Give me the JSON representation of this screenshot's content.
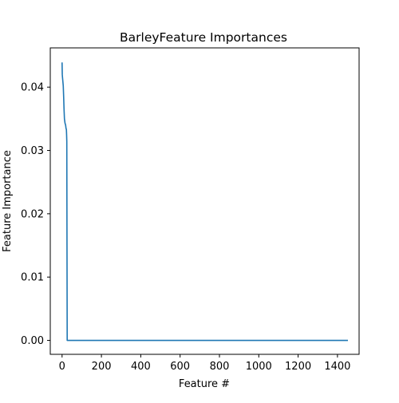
{
  "chart_data": {
    "type": "line",
    "title": "BarleyFeature Importances",
    "xlabel": "Feature #",
    "ylabel": "Feature Importance",
    "xlim": [
      -60,
      1510
    ],
    "ylim": [
      -0.0022,
      0.0462
    ],
    "xticks": [
      0,
      200,
      400,
      600,
      800,
      1000,
      1200,
      1400
    ],
    "xtick_labels": [
      "0",
      "200",
      "400",
      "600",
      "800",
      "1000",
      "1200",
      "1400"
    ],
    "yticks": [
      0.0,
      0.01,
      0.02,
      0.03,
      0.04
    ],
    "ytick_labels": [
      "0.00",
      "0.01",
      "0.02",
      "0.03",
      "0.04"
    ],
    "grid": false,
    "series": [
      {
        "color": "#1f77b4",
        "x": [
          0,
          1,
          2,
          4,
          6,
          8,
          10,
          12,
          15,
          18,
          20,
          22,
          23,
          24,
          25,
          26,
          1450
        ],
        "y": [
          0.0438,
          0.042,
          0.0416,
          0.0409,
          0.0402,
          0.0385,
          0.0365,
          0.035,
          0.0343,
          0.034,
          0.0335,
          0.0333,
          0.0325,
          0.0314,
          0.015,
          0.0,
          0.0
        ]
      }
    ]
  }
}
